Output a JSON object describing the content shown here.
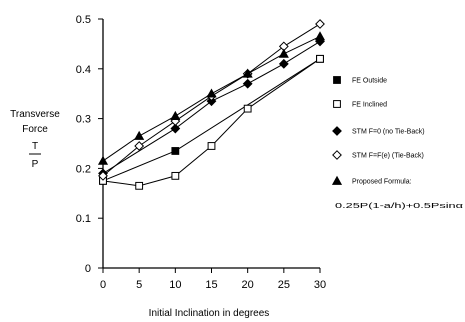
{
  "chart_data": {
    "type": "line",
    "title": "",
    "xlabel": "Initial Inclination in degrees",
    "ylabel_lines": [
      "Transverse",
      "Force"
    ],
    "ylabel_fraction": {
      "numerator": "T",
      "denominator": "P"
    },
    "x": [
      0,
      5,
      10,
      15,
      20,
      25,
      30
    ],
    "xlim": [
      0,
      30
    ],
    "ylim": [
      0,
      0.5
    ],
    "xticks": [
      "0",
      "5",
      "10",
      "15",
      "20",
      "25",
      "30"
    ],
    "yticks": [
      "0",
      "0.1",
      "0.2",
      "0.3",
      "0.4",
      "0.5"
    ],
    "grid": false,
    "legend_position": "right",
    "series": [
      {
        "name": "FE Outside",
        "marker": "square-filled",
        "points": [
          [
            0,
            0.175
          ],
          [
            10,
            0.235
          ],
          [
            30,
            0.42
          ]
        ]
      },
      {
        "name": "FE Inclined",
        "marker": "square-open",
        "points": [
          [
            0,
            0.175
          ],
          [
            5,
            0.165
          ],
          [
            10,
            0.185
          ],
          [
            15,
            0.245
          ],
          [
            20,
            0.32
          ],
          [
            30,
            0.42
          ]
        ]
      },
      {
        "name": "STM F=0 (no Tie-Back)",
        "marker": "diamond-filled",
        "points": [
          [
            0,
            0.19
          ],
          [
            10,
            0.28
          ],
          [
            15,
            0.335
          ],
          [
            20,
            0.37
          ],
          [
            25,
            0.41
          ],
          [
            30,
            0.455
          ]
        ]
      },
      {
        "name": "STM F=F(e) (Tie-Back)",
        "marker": "diamond-open",
        "points": [
          [
            0,
            0.185
          ],
          [
            5,
            0.245
          ],
          [
            10,
            0.295
          ],
          [
            15,
            0.345
          ],
          [
            20,
            0.39
          ],
          [
            25,
            0.445
          ],
          [
            30,
            0.49
          ]
        ]
      },
      {
        "name": "Proposed Formula:",
        "marker": "triangle-filled",
        "points": [
          [
            0,
            0.215
          ],
          [
            5,
            0.265
          ],
          [
            10,
            0.305
          ],
          [
            15,
            0.35
          ],
          [
            20,
            0.39
          ],
          [
            25,
            0.43
          ],
          [
            30,
            0.465
          ]
        ]
      }
    ],
    "legend_formula": "0.25P(1-a/h)+0.5Psinα"
  }
}
